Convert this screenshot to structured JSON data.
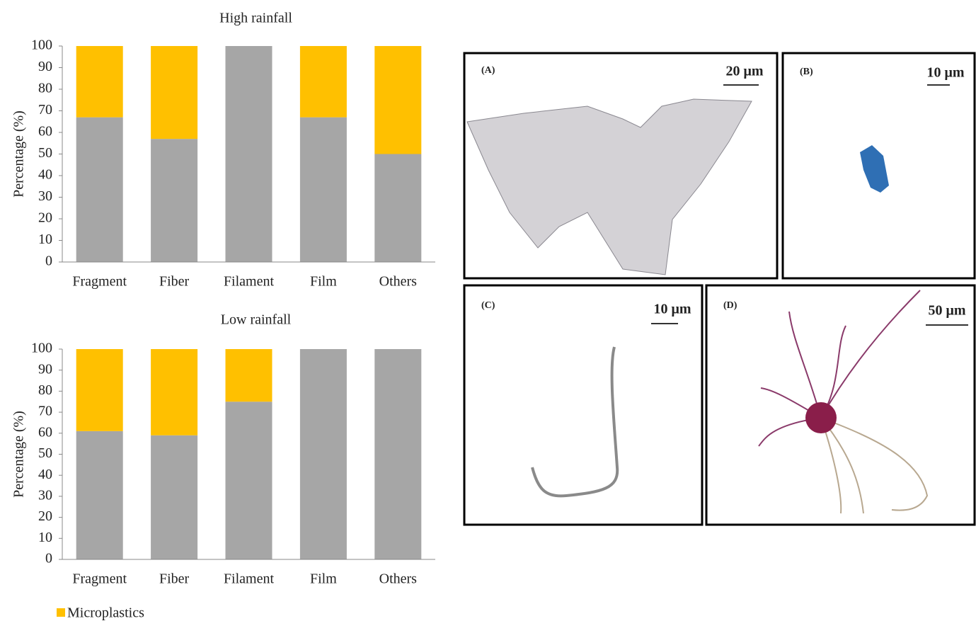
{
  "chart_data": [
    {
      "type": "stacked_bar",
      "title": "High rainfall",
      "y_label": "Percentage (%)",
      "categories": [
        "Fragment",
        "Fiber",
        "Filament",
        "Film",
        "Others"
      ],
      "series": [
        {
          "color": "#a6a6a6",
          "values": [
            67,
            57,
            100,
            67,
            50
          ]
        },
        {
          "color": "#ffc000",
          "values": [
            33,
            43,
            0,
            33,
            50
          ]
        }
      ],
      "ylim": [
        0,
        100
      ],
      "yticks": [
        0,
        10,
        20,
        30,
        40,
        50,
        60,
        70,
        80,
        90,
        100
      ],
      "grid": false
    },
    {
      "type": "stacked_bar",
      "title": "Low rainfall",
      "y_label": "Percentage (%)",
      "categories": [
        "Fragment",
        "Fiber",
        "Filament",
        "Film",
        "Others"
      ],
      "series": [
        {
          "color": "#a6a6a6",
          "values": [
            61,
            59,
            75,
            100,
            100
          ]
        },
        {
          "name": "Microplastics",
          "color": "#ffc000",
          "values": [
            39,
            41,
            25,
            0,
            0
          ]
        }
      ],
      "ylim": [
        0,
        100
      ],
      "yticks": [
        0,
        10,
        20,
        30,
        40,
        50,
        60,
        70,
        80,
        90,
        100
      ],
      "grid": false
    }
  ],
  "panels": [
    {
      "label": "(A)",
      "scale": "20 μm"
    },
    {
      "label": "(B)",
      "scale": "10 μm"
    },
    {
      "label": "(C)",
      "scale": "10 μm"
    },
    {
      "label": "(D)",
      "scale": "50 μm"
    }
  ]
}
